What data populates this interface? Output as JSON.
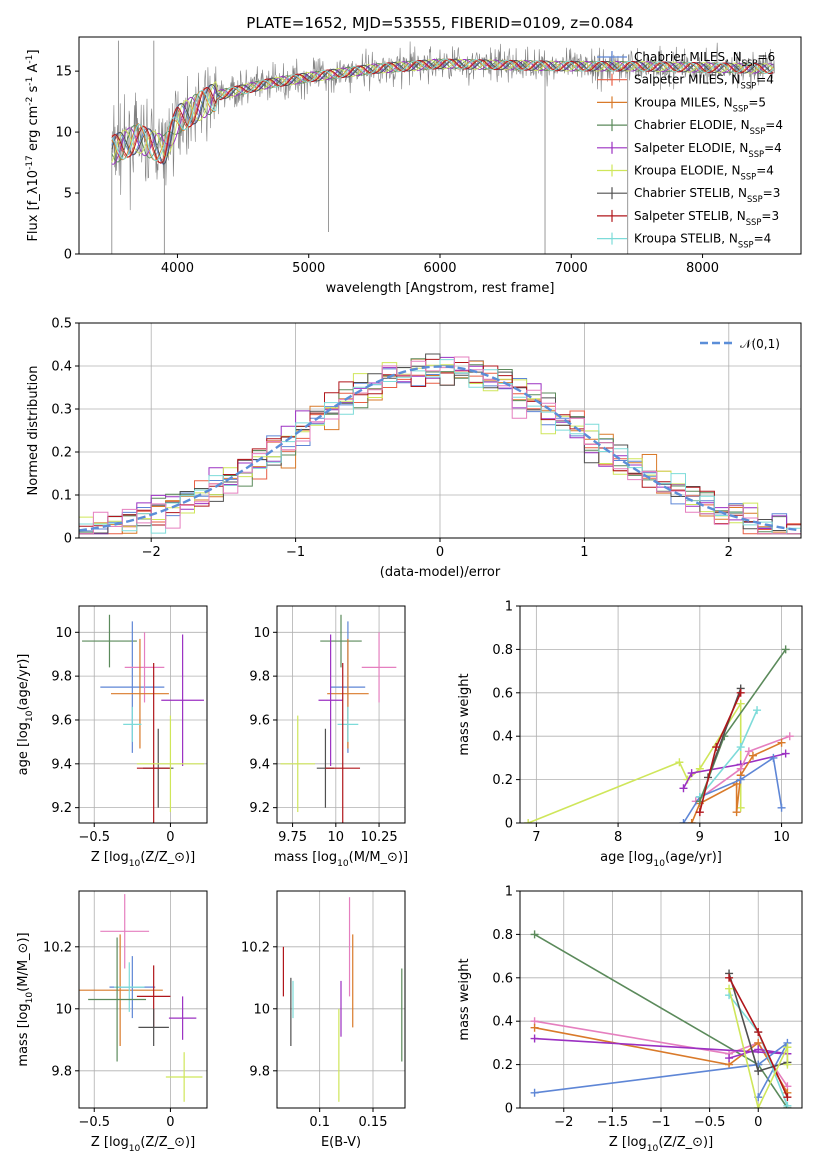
{
  "title": "PLATE=1652, MJD=53555, FIBERID=0109, z=0.084",
  "colors": {
    "Chabrier MILES": "#5e86d6",
    "Salpeter MILES": "#e85f45",
    "Kroupa MILES": "#d97a2a",
    "Chabrier ELODIE": "#5b8a5b",
    "Salpeter ELODIE": "#9b30c2",
    "Kroupa ELODIE": "#cfe65a",
    "Chabrier STELIB": "#505050",
    "Salpeter STELIB": "#b0161b",
    "Kroupa STELIB": "#7ddbd9",
    "Extra": "#e57fbf",
    "Normal": "#5b8ed8",
    "Spectrum": "#808080"
  },
  "chart_data": [
    {
      "id": "spectrum",
      "type": "line",
      "xlabel": "wavelength [Angstrom, rest frame]",
      "ylabel": "Flux [f$_\\lambda$10$^{-17}$ erg cm$^{-2}$ s$^{-1}$ A$^{-1}$]",
      "xlim": [
        3250,
        8750
      ],
      "ylim": [
        0,
        17.8
      ],
      "xticks": [
        4000,
        5000,
        6000,
        7000,
        8000
      ],
      "yticks": [
        0,
        5,
        10,
        15
      ],
      "grid": false,
      "legend_position": "top-right",
      "continuum": [
        [
          3500,
          8.5
        ],
        [
          3700,
          9.5
        ],
        [
          3900,
          8.5
        ],
        [
          4000,
          11
        ],
        [
          4300,
          13
        ],
        [
          4700,
          14
        ],
        [
          5000,
          14.5
        ],
        [
          5500,
          15.2
        ],
        [
          6000,
          15.6
        ],
        [
          6500,
          15.5
        ],
        [
          7000,
          15.4
        ],
        [
          7500,
          15.4
        ],
        [
          8000,
          15.3
        ],
        [
          8550,
          15.2
        ]
      ],
      "spikes": [
        {
          "x": 3500,
          "y": 0
        },
        {
          "x": 3900,
          "y": 0
        },
        {
          "x": 6800,
          "y": 0
        },
        {
          "x": 7430,
          "y": 0
        },
        {
          "x": 3550,
          "y": 17.5
        },
        {
          "x": 3820,
          "y": 17.5
        },
        {
          "x": 5150,
          "y": 1.8
        }
      ],
      "series": [
        {
          "name": "Chabrier MILES, N$_{SSP}$=6",
          "color_key": "Chabrier MILES"
        },
        {
          "name": "Salpeter MILES, N$_{SSP}$=4",
          "color_key": "Salpeter MILES"
        },
        {
          "name": "Kroupa MILES, N$_{SSP}$=5",
          "color_key": "Kroupa MILES"
        },
        {
          "name": "Chabrier ELODIE, N$_{SSP}$=4",
          "color_key": "Chabrier ELODIE"
        },
        {
          "name": "Salpeter ELODIE, N$_{SSP}$=4",
          "color_key": "Salpeter ELODIE"
        },
        {
          "name": "Kroupa ELODIE, N$_{SSP}$=4",
          "color_key": "Kroupa ELODIE"
        },
        {
          "name": "Chabrier STELIB, N$_{SSP}$=3",
          "color_key": "Chabrier STELIB"
        },
        {
          "name": "Salpeter STELIB, N$_{SSP}$=3",
          "color_key": "Salpeter STELIB"
        },
        {
          "name": "Kroupa STELIB, N$_{SSP}$=4",
          "color_key": "Kroupa STELIB"
        }
      ]
    },
    {
      "id": "residuals",
      "type": "line",
      "xlabel": "(data-model)/error",
      "ylabel": "Normed distribution",
      "xlim": [
        -2.5,
        2.5
      ],
      "ylim": [
        0,
        0.5
      ],
      "xticks": [
        -2,
        -1,
        0,
        1,
        2
      ],
      "yticks": [
        0.0,
        0.1,
        0.2,
        0.3,
        0.4,
        0.5
      ],
      "grid": true,
      "legend_position": "top-right",
      "legend": "$\\mathcal{N}(0,1)$",
      "bin_width": 0.1
    },
    {
      "id": "age_vs_Z",
      "type": "scatter",
      "xlabel": "Z [log$_{10}$($Z/Z_\\odot$)]",
      "ylabel": "age  [log$_{10}$($age/yr$)]",
      "xlim": [
        -0.6,
        0.24
      ],
      "ylim": [
        9.13,
        10.12
      ],
      "xticks": [
        -0.5,
        0.0
      ],
      "yticks": [
        9.2,
        9.4,
        9.6,
        9.8,
        10.0
      ],
      "grid": true,
      "points": [
        {
          "c": "Chabrier ELODIE",
          "x": -0.4,
          "y": 9.96,
          "xe": 0.18,
          "ye": 0.12
        },
        {
          "c": "Chabrier MILES",
          "x": -0.25,
          "y": 9.75,
          "xe": 0.21,
          "ye": 0.3
        },
        {
          "c": "Extra",
          "x": -0.17,
          "y": 9.84,
          "xe": 0.13,
          "ye": 0.16
        },
        {
          "c": "Kroupa MILES",
          "x": -0.2,
          "y": 9.72,
          "xe": 0.19,
          "ye": 0.25
        },
        {
          "c": "Kroupa STELIB",
          "x": -0.25,
          "y": 9.58,
          "xe": 0.06,
          "ye": 0.08
        },
        {
          "c": "Salpeter ELODIE",
          "x": 0.08,
          "y": 9.69,
          "xe": 0.14,
          "ye": 0.3
        },
        {
          "c": "Chabrier STELIB",
          "x": -0.08,
          "y": 9.38,
          "xe": 0.1,
          "ye": 0.18
        },
        {
          "c": "Salpeter STELIB",
          "x": -0.11,
          "y": 9.38,
          "xe": 0.11,
          "ye": 0.48
        },
        {
          "c": "Kroupa ELODIE",
          "x": 0.0,
          "y": 9.4,
          "xe": 0.22,
          "ye": 0.22
        }
      ]
    },
    {
      "id": "age_vs_mass",
      "type": "scatter",
      "xlabel": "mass [log$_{10}$($M/M_\\odot$)]",
      "ylabel": "",
      "xlim": [
        9.66,
        10.4
      ],
      "ylim": [
        9.13,
        10.12
      ],
      "xticks": [
        9.75,
        10.0,
        10.25
      ],
      "yticks": [
        9.2,
        9.4,
        9.6,
        9.8,
        10.0
      ],
      "grid": true,
      "points": [
        {
          "c": "Chabrier ELODIE",
          "x": 10.03,
          "y": 9.96,
          "xe": 0.12,
          "ye": 0.12
        },
        {
          "c": "Chabrier MILES",
          "x": 10.07,
          "y": 9.75,
          "xe": 0.1,
          "ye": 0.3
        },
        {
          "c": "Extra",
          "x": 10.25,
          "y": 9.84,
          "xe": 0.1,
          "ye": 0.16
        },
        {
          "c": "Kroupa MILES",
          "x": 10.07,
          "y": 9.72,
          "xe": 0.12,
          "ye": 0.25
        },
        {
          "c": "Kroupa STELIB",
          "x": 10.07,
          "y": 9.58,
          "xe": 0.06,
          "ye": 0.08
        },
        {
          "c": "Salpeter ELODIE",
          "x": 9.97,
          "y": 9.69,
          "xe": 0.07,
          "ye": 0.3
        },
        {
          "c": "Chabrier STELIB",
          "x": 9.94,
          "y": 9.38,
          "xe": 0.05,
          "ye": 0.18
        },
        {
          "c": "Salpeter STELIB",
          "x": 10.04,
          "y": 9.38,
          "xe": 0.1,
          "ye": 0.48
        },
        {
          "c": "Kroupa ELODIE",
          "x": 9.78,
          "y": 9.4,
          "xe": 0.1,
          "ye": 0.22
        }
      ]
    },
    {
      "id": "weight_vs_age",
      "type": "line",
      "xlabel": "age  [log$_{10}$($age/yr$)]",
      "ylabel": "mass weight",
      "xlim": [
        6.8,
        10.25
      ],
      "ylim": [
        0,
        1.0
      ],
      "xticks": [
        7,
        8,
        9,
        10
      ],
      "yticks": [
        0.0,
        0.2,
        0.4,
        0.6,
        0.8,
        1.0
      ],
      "grid": true,
      "series": [
        {
          "c": "Kroupa ELODIE",
          "points": [
            [
              6.9,
              0.0
            ],
            [
              8.75,
              0.28
            ],
            [
              8.85,
              0.2
            ],
            [
              9.0,
              0.25
            ],
            [
              9.5,
              0.55
            ],
            [
              9.5,
              0.07
            ]
          ]
        },
        {
          "c": "Salpeter ELODIE",
          "points": [
            [
              8.8,
              0.16
            ],
            [
              8.9,
              0.23
            ],
            [
              9.5,
              0.27
            ],
            [
              10.05,
              0.32
            ]
          ]
        },
        {
          "c": "Extra",
          "points": [
            [
              8.95,
              0.1
            ],
            [
              9.5,
              0.25
            ],
            [
              9.6,
              0.33
            ],
            [
              10.1,
              0.4
            ]
          ]
        },
        {
          "c": "Kroupa MILES",
          "points": [
            [
              8.9,
              0.0
            ],
            [
              9.0,
              0.09
            ],
            [
              9.45,
              0.18
            ],
            [
              9.45,
              0.05
            ],
            [
              9.5,
              0.22
            ],
            [
              9.65,
              0.31
            ],
            [
              10.0,
              0.37
            ]
          ]
        },
        {
          "c": "Chabrier MILES",
          "points": [
            [
              8.8,
              0.0
            ],
            [
              9.0,
              0.12
            ],
            [
              9.5,
              0.2
            ],
            [
              9.9,
              0.3
            ],
            [
              10.0,
              0.07
            ]
          ]
        },
        {
          "c": "Kroupa STELIB",
          "points": [
            [
              9.0,
              0.12
            ],
            [
              9.5,
              0.35
            ],
            [
              9.7,
              0.52
            ]
          ]
        },
        {
          "c": "Chabrier ELODIE",
          "points": [
            [
              9.0,
              0.1
            ],
            [
              9.3,
              0.4
            ],
            [
              10.05,
              0.8
            ]
          ]
        },
        {
          "c": "Chabrier STELIB",
          "points": [
            [
              9.1,
              0.21
            ],
            [
              9.5,
              0.62
            ]
          ]
        },
        {
          "c": "Salpeter STELIB",
          "points": [
            [
              9.0,
              0.05
            ],
            [
              9.2,
              0.35
            ],
            [
              9.5,
              0.6
            ]
          ]
        }
      ]
    },
    {
      "id": "mass_vs_Z",
      "type": "scatter",
      "xlabel": "Z [log$_{10}$($Z/Z_\\odot$)]",
      "ylabel": "mass [log$_{10}$($M/M_\\odot$)]",
      "xlim": [
        -0.6,
        0.24
      ],
      "ylim": [
        9.68,
        10.38
      ],
      "xticks": [
        -0.5,
        0.0
      ],
      "yticks": [
        9.8,
        10.0,
        10.2
      ],
      "grid": true,
      "points": [
        {
          "c": "Extra",
          "x": -0.3,
          "y": 10.25,
          "xe": 0.16,
          "ye": 0.12
        },
        {
          "c": "Kroupa MILES",
          "x": -0.33,
          "y": 10.06,
          "xe": 0.28,
          "ye": 0.18
        },
        {
          "c": "Chabrier MILES",
          "x": -0.25,
          "y": 10.07,
          "xe": 0.15,
          "ye": 0.1
        },
        {
          "c": "Kroupa STELIB",
          "x": -0.27,
          "y": 10.07,
          "xe": 0.1,
          "ye": 0.08
        },
        {
          "c": "Chabrier ELODIE",
          "x": -0.35,
          "y": 10.03,
          "xe": 0.19,
          "ye": 0.2
        },
        {
          "c": "Salpeter STELIB",
          "x": -0.11,
          "y": 10.04,
          "xe": 0.11,
          "ye": 0.1
        },
        {
          "c": "Chabrier STELIB",
          "x": -0.11,
          "y": 9.94,
          "xe": 0.1,
          "ye": 0.06
        },
        {
          "c": "Salpeter ELODIE",
          "x": 0.08,
          "y": 9.97,
          "xe": 0.09,
          "ye": 0.07
        },
        {
          "c": "Kroupa ELODIE",
          "x": 0.09,
          "y": 9.78,
          "xe": 0.12,
          "ye": 0.08
        }
      ]
    },
    {
      "id": "mass_vs_EBV",
      "type": "scatter",
      "xlabel": "E(B-V)",
      "ylabel": "",
      "xlim": [
        0.06,
        0.18
      ],
      "ylim": [
        9.68,
        10.38
      ],
      "xticks": [
        0.1,
        0.15
      ],
      "yticks": [
        9.8,
        10.0,
        10.2
      ],
      "grid": true,
      "points": [
        {
          "c": "Salpeter STELIB",
          "x": 0.066,
          "y": 10.12,
          "xe": 0,
          "ye": 0.08
        },
        {
          "c": "Kroupa STELIB",
          "x": 0.075,
          "y": 10.03,
          "xe": 0,
          "ye": 0.06
        },
        {
          "c": "Chabrier STELIB",
          "x": 0.073,
          "y": 9.99,
          "xe": 0,
          "ye": 0.11
        },
        {
          "c": "Kroupa ELODIE",
          "x": 0.118,
          "y": 9.85,
          "xe": 0,
          "ye": 0.15
        },
        {
          "c": "Salpeter ELODIE",
          "x": 0.12,
          "y": 10.0,
          "xe": 0,
          "ye": 0.09
        },
        {
          "c": "Extra",
          "x": 0.128,
          "y": 10.2,
          "xe": 0,
          "ye": 0.16
        },
        {
          "c": "Kroupa MILES",
          "x": 0.131,
          "y": 10.09,
          "xe": 0,
          "ye": 0.15
        },
        {
          "c": "Chabrier ELODIE",
          "x": 0.177,
          "y": 9.98,
          "xe": 0,
          "ye": 0.15
        }
      ]
    },
    {
      "id": "weight_vs_Z",
      "type": "line",
      "xlabel": "Z [log$_{10}$($Z/Z_\\odot$)]",
      "ylabel": "mass weight",
      "xlim": [
        -2.45,
        0.45
      ],
      "ylim": [
        0,
        1.0
      ],
      "xticks": [
        -2.0,
        -1.5,
        -1.0,
        -0.5,
        0.0
      ],
      "yticks": [
        0.0,
        0.2,
        0.4,
        0.6,
        0.8,
        1.0
      ],
      "grid": true,
      "series": [
        {
          "c": "Chabrier ELODIE",
          "points": [
            [
              -2.3,
              0.8
            ],
            [
              0.0,
              0.2
            ],
            [
              0.3,
              0.0
            ]
          ]
        },
        {
          "c": "Extra",
          "points": [
            [
              -2.3,
              0.4
            ],
            [
              -0.3,
              0.25
            ],
            [
              0.0,
              0.3
            ],
            [
              0.3,
              0.1
            ]
          ]
        },
        {
          "c": "Kroupa MILES",
          "points": [
            [
              -2.3,
              0.37
            ],
            [
              -0.3,
              0.2
            ],
            [
              0.0,
              0.3
            ],
            [
              0.3,
              0.07
            ]
          ]
        },
        {
          "c": "Salpeter ELODIE",
          "points": [
            [
              -2.3,
              0.32
            ],
            [
              0.3,
              0.25
            ],
            [
              0.0,
              0.27
            ],
            [
              -0.3,
              0.23
            ]
          ]
        },
        {
          "c": "Chabrier MILES",
          "points": [
            [
              -2.3,
              0.07
            ],
            [
              0.0,
              0.2
            ],
            [
              0.3,
              0.3
            ],
            [
              0.0,
              0.05
            ]
          ]
        },
        {
          "c": "Kroupa STELIB",
          "points": [
            [
              -0.3,
              0.52
            ],
            [
              0.0,
              0.35
            ],
            [
              0.3,
              0.01
            ]
          ]
        },
        {
          "c": "Chabrier STELIB",
          "points": [
            [
              -0.3,
              0.62
            ],
            [
              0.0,
              0.17
            ],
            [
              0.3,
              0.21
            ]
          ]
        },
        {
          "c": "Salpeter STELIB",
          "points": [
            [
              -0.3,
              0.6
            ],
            [
              0.0,
              0.35
            ],
            [
              0.3,
              0.05
            ]
          ]
        },
        {
          "c": "Kroupa ELODIE",
          "points": [
            [
              -0.3,
              0.55
            ],
            [
              0.0,
              0.0
            ],
            [
              0.3,
              0.28
            ],
            [
              0.3,
              0.2
            ]
          ]
        }
      ]
    }
  ]
}
